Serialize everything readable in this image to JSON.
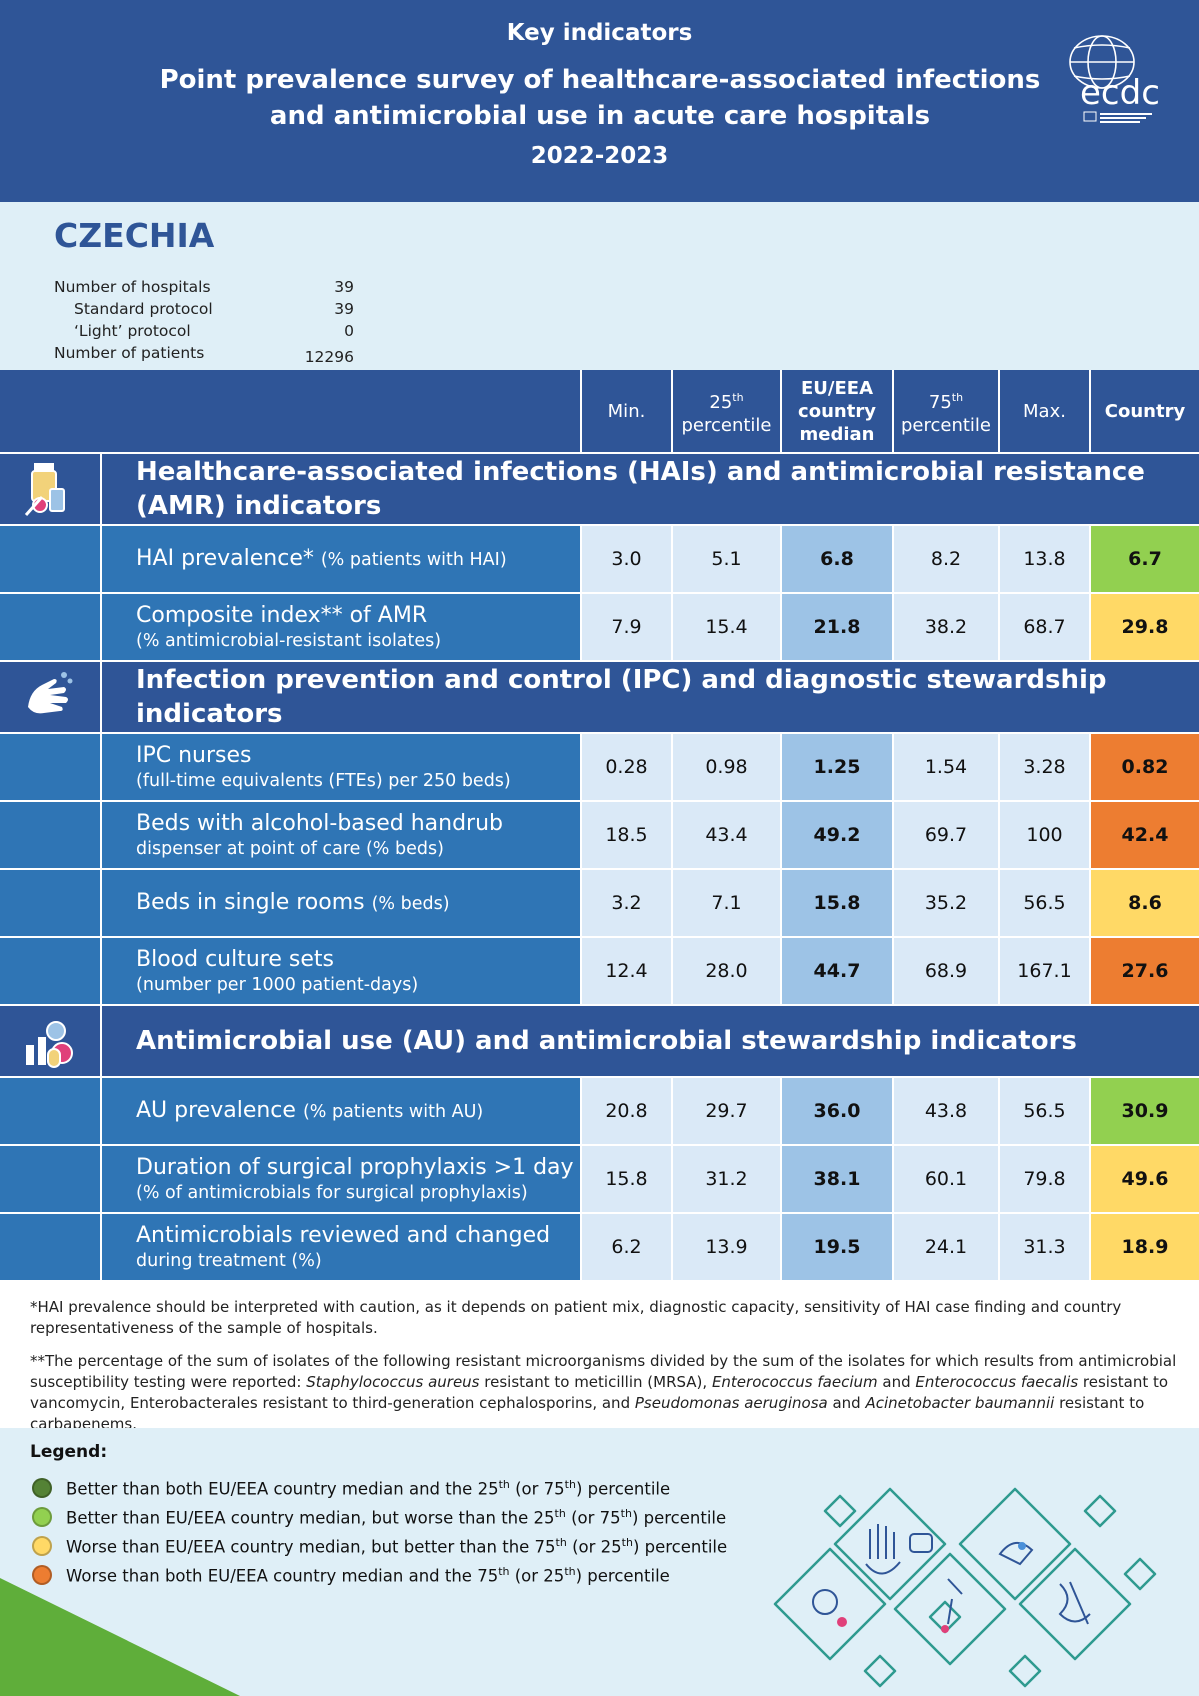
{
  "header": {
    "subtitle": "Key indicators",
    "title": "Point prevalence survey of healthcare-associated infections and antimicrobial use in acute care hospitals",
    "years": "2022-2023",
    "logo_text": "ecdc"
  },
  "country": {
    "name": "CZECHIA",
    "info": [
      {
        "label": "Number of hospitals",
        "value": "39"
      },
      {
        "label": "Standard protocol",
        "value": "39"
      },
      {
        "label": "‘Light’ protocol",
        "value": "0"
      },
      {
        "label": "Number of patients",
        "value": "12296"
      }
    ]
  },
  "table": {
    "columns": {
      "min": "Min.",
      "p25_a": "25",
      "p25_sup": "th",
      "p25_b": "percentile",
      "median": "EU/EEA country median",
      "p75_a": "75",
      "p75_sup": "th",
      "p75_b": "percentile",
      "max": "Max.",
      "country": "Country"
    },
    "sections": [
      {
        "title": "Healthcare-associated infections (HAIs) and antimicrobial resistance (AMR) indicators",
        "icon": "medication-icon",
        "rows": [
          {
            "label": "HAI prevalence* ",
            "label_small": "(% patients with HAI)",
            "sub": "",
            "min": "3.0",
            "p25": "5.1",
            "median": "6.8",
            "p75": "8.2",
            "max": "13.8",
            "country": "6.7",
            "status": "better-median-worse-percentile"
          },
          {
            "label": "Composite index** of AMR",
            "label_small": "",
            "sub": "(% antimicrobial-resistant isolates)",
            "min": "7.9",
            "p25": "15.4",
            "median": "21.8",
            "p75": "38.2",
            "max": "68.7",
            "country": "29.8",
            "status": "worse-median-better-percentile"
          }
        ]
      },
      {
        "title": "Infection prevention and control (IPC) and diagnostic stewardship indicators",
        "icon": "handwashing-icon",
        "rows": [
          {
            "label": "IPC nurses",
            "label_small": "",
            "sub": "(full-time equivalents (FTEs) per 250 beds)",
            "min": "0.28",
            "p25": "0.98",
            "median": "1.25",
            "p75": "1.54",
            "max": "3.28",
            "country": "0.82",
            "status": "worse-both"
          },
          {
            "label": "Beds with alcohol-based handrub",
            "label_small": "",
            "sub": "dispenser at point of care (% beds)",
            "min": "18.5",
            "p25": "43.4",
            "median": "49.2",
            "p75": "69.7",
            "max": "100",
            "country": "42.4",
            "status": "worse-both"
          },
          {
            "label": "Beds in single rooms ",
            "label_small": "(% beds)",
            "sub": "",
            "min": "3.2",
            "p25": "7.1",
            "median": "15.8",
            "p75": "35.2",
            "max": "56.5",
            "country": "8.6",
            "status": "worse-median-better-percentile"
          },
          {
            "label": "Blood culture sets",
            "label_small": "",
            "sub": "(number per 1000 patient-days)",
            "min": "12.4",
            "p25": "28.0",
            "median": "44.7",
            "p75": "68.9",
            "max": "167.1",
            "country": "27.6",
            "status": "worse-both"
          }
        ]
      },
      {
        "title": "Antimicrobial use (AU) and antimicrobial stewardship indicators",
        "icon": "pills-chart-icon",
        "rows": [
          {
            "label": "AU prevalence ",
            "label_small": "(% patients with AU)",
            "sub": "",
            "min": "20.8",
            "p25": "29.7",
            "median": "36.0",
            "p75": "43.8",
            "max": "56.5",
            "country": "30.9",
            "status": "better-median-worse-percentile"
          },
          {
            "label": "Duration of surgical prophylaxis >1 day",
            "label_small": "",
            "sub": "(% of antimicrobials for surgical prophylaxis)",
            "min": "15.8",
            "p25": "31.2",
            "median": "38.1",
            "p75": "60.1",
            "max": "79.8",
            "country": "49.6",
            "status": "worse-median-better-percentile"
          },
          {
            "label": "Antimicrobials reviewed and changed",
            "label_small": "",
            "sub": "during treatment (%)",
            "min": "6.2",
            "p25": "13.9",
            "median": "19.5",
            "p75": "24.1",
            "max": "31.3",
            "country": "18.9",
            "status": "worse-median-better-percentile"
          }
        ]
      }
    ]
  },
  "footnotes": {
    "note1": "*HAI prevalence should be interpreted with caution, as it depends on patient mix, diagnostic capacity, sensitivity of HAI case finding and country representativeness of the sample of hospitals.",
    "note2_a": "**The percentage of the sum of isolates of the following resistant microorganisms divided by the sum of the isolates for which results from antimicrobial susceptibility testing were reported: ",
    "note2_i1": "Staphylococcus aureus",
    "note2_b": " resistant to meticillin (MRSA), ",
    "note2_i2": "Enterococcus faecium",
    "note2_c": " and ",
    "note2_i3": "Enterococcus faecalis",
    "note2_d": " resistant to vancomycin, Enterobacterales resistant to third-generation cephalosporins, and ",
    "note2_i4": "Pseudomonas aeruginosa",
    "note2_e": " and ",
    "note2_i5": "Acinetobacter baumannii",
    "note2_f": " resistant to carbapenems."
  },
  "legend": {
    "title": "Legend:",
    "items": [
      {
        "pre": "Better than both EU/EEA country median and the 25",
        "s1": "th",
        "mid": " (or 75",
        "s2": "th",
        "post": ") percentile",
        "color": "#548235"
      },
      {
        "pre": "Better than EU/EEA country median, but worse than the 25",
        "s1": "th",
        "mid": " (or 75",
        "s2": "th",
        "post": ") percentile",
        "color": "#92d050"
      },
      {
        "pre": "Worse than EU/EEA country median, but better than the 75",
        "s1": "th",
        "mid": " (or 25",
        "s2": "th",
        "post": ") percentile",
        "color": "#ffd966"
      },
      {
        "pre": "Worse than both EU/EEA country median and the 75",
        "s1": "th",
        "mid": " (or 25",
        "s2": "th",
        "post": ") percentile",
        "color": "#ed7d31"
      }
    ]
  },
  "colors": {
    "header_blue": "#2f5597",
    "label_blue": "#2f75b5",
    "cell_light": "#dae9f7",
    "median_cell": "#9dc3e6",
    "better-both": "#548235",
    "better-median-worse-percentile": "#92d050",
    "worse-median-better-percentile": "#ffd966",
    "worse-both": "#ed7d31"
  }
}
